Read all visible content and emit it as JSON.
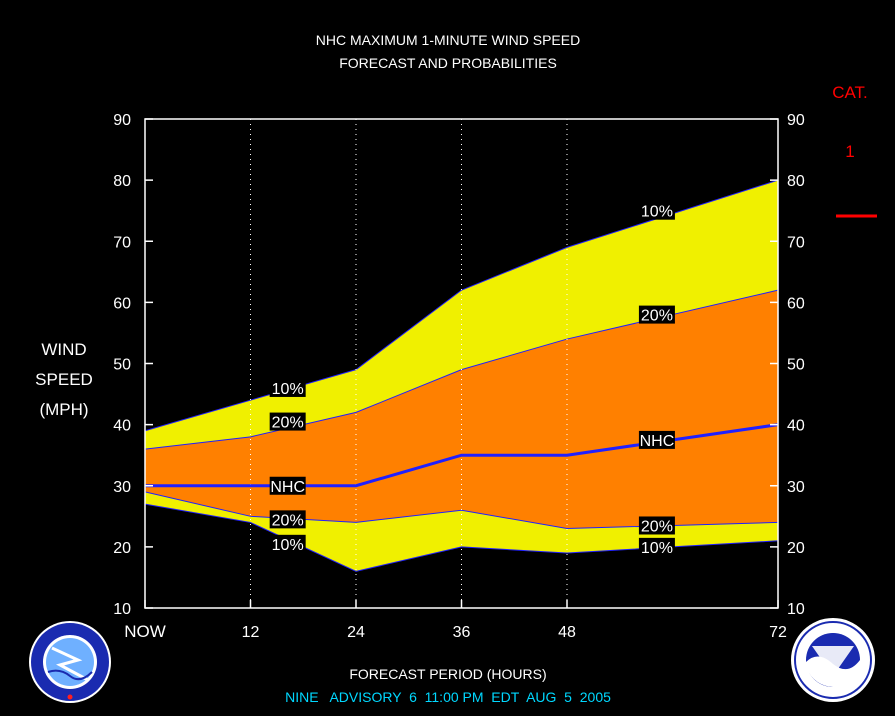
{
  "title_line1": "NHC MAXIMUM 1-MINUTE WIND SPEED",
  "title_line2": "FORECAST AND PROBABILITIES",
  "ylabel_lines": [
    "WIND",
    "SPEED",
    "(MPH)"
  ],
  "xlabel": "FORECAST PERIOD (HOURS)",
  "footer": "NINE   ADVISORY  6  11:00 PM  EDT  AUG  5  2005",
  "category": {
    "header": "CAT.",
    "label": "1",
    "color": "#ff0000"
  },
  "colors": {
    "background": "#000000",
    "band_outer": "#f0f000",
    "band_inner": "#ff8000",
    "nhc_line": "#2020ff",
    "title": "#ffffff",
    "footer": "#00d8ff",
    "label_bg": "#000000"
  },
  "logos": {
    "left": "nws-logo",
    "right": "noaa-logo"
  },
  "chart_data": {
    "type": "area",
    "x": [
      0,
      12,
      24,
      36,
      48,
      72
    ],
    "xticks": [
      0,
      12,
      24,
      36,
      48,
      72
    ],
    "xtick_labels": [
      "NOW",
      "12",
      "24",
      "36",
      "48",
      "72"
    ],
    "xlim": [
      0,
      72
    ],
    "ylim": [
      10,
      90
    ],
    "yticks": [
      10,
      20,
      30,
      40,
      50,
      60,
      70,
      80,
      90
    ],
    "grid_vertical": true,
    "series": [
      {
        "name": "10%",
        "values": [
          39,
          44,
          49,
          62,
          69,
          80
        ]
      },
      {
        "name": "20%",
        "values": [
          36,
          38,
          42,
          49,
          54,
          62
        ]
      },
      {
        "name": "NHC",
        "values": [
          30,
          30,
          30,
          35,
          35,
          40
        ]
      },
      {
        "name": "20%",
        "values": [
          29,
          25,
          24,
          26,
          23,
          24
        ]
      },
      {
        "name": "10%",
        "values": [
          27,
          24,
          16,
          20,
          19,
          21
        ]
      }
    ],
    "annotations": [
      {
        "text": "10%",
        "x": 16,
        "y": 46
      },
      {
        "text": "20%",
        "x": 16,
        "y": 40.5
      },
      {
        "text": "NHC",
        "x": 16,
        "y": 30
      },
      {
        "text": "20%",
        "x": 16,
        "y": 24.5
      },
      {
        "text": "10%",
        "x": 16,
        "y": 20.5
      },
      {
        "text": "10%",
        "x": 58,
        "y": 75
      },
      {
        "text": "20%",
        "x": 58,
        "y": 58
      },
      {
        "text": "NHC",
        "x": 58,
        "y": 37.5
      },
      {
        "text": "20%",
        "x": 58,
        "y": 23.5
      },
      {
        "text": "10%",
        "x": 58,
        "y": 20
      }
    ]
  }
}
